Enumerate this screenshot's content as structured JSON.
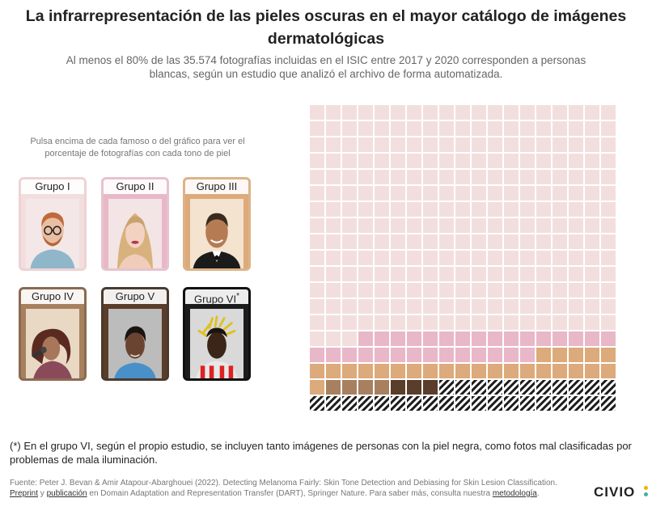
{
  "title": "La infrarrepresentación de las pieles oscuras en el mayor catálogo de imágenes dermatológicas",
  "subtitle": "Al menos el 80% de las 35.574 fotografías incluidas en el ISIC entre 2017 y 2020 corresponden a personas blancas, según un estudio que analizó el archivo de forma automatizada.",
  "instructions": "Pulsa encima de cada famoso o del gráfico para ver el porcentaje de fotografías con cada tono de piel",
  "groups": [
    {
      "label": "Grupo I",
      "color": "#f3dede",
      "border": "#edd3d5"
    },
    {
      "label": "Grupo II",
      "color": "#e8b8c8",
      "border": "#e6c3cd"
    },
    {
      "label": "Grupo III",
      "color": "#dcaa7b",
      "border": "#dcb388"
    },
    {
      "label": "Grupo IV",
      "color": "#a7805f",
      "border": "#8a6a52"
    },
    {
      "label": "Grupo V",
      "color": "#5a3d2a",
      "border": "#4a3a30"
    },
    {
      "label": "Grupo VI",
      "color": "#1c1c1c",
      "border": "#111111",
      "footnote_mark": "*"
    }
  ],
  "chart_data": {
    "type": "waffle",
    "rows": 19,
    "columns": 19,
    "unit": "fotografías",
    "total": 35574,
    "categories": [
      "Grupo I",
      "Grupo II",
      "Grupo III",
      "Grupo IV",
      "Grupo V",
      "Grupo VI"
    ],
    "cell_counts": [
      269,
      30,
      25,
      4,
      3,
      30
    ],
    "hatched_category": "Grupo VI"
  },
  "footnote": "(*) En el grupo VI, según el propio estudio, se incluyen tanto imágenes de personas con la piel negra, como fotos mal clasificadas por problemas de mala iluminación.",
  "source": {
    "prefix": "Fuente: Peter J. Bevan & Amir Atapour-Abarghouei (2022). Detecting Melanoma Fairly: Skin Tone Detection and Debiasing for Skin Lesion Classification. ",
    "link_preprint": "Preprint",
    "y": " y ",
    "link_publicacion": "publicación",
    "middle": " en Domain Adaptation and Representation Transfer (DART), Springer Nature. Para saber más, consulta nuestra ",
    "link_metodologia": "metodología",
    "suffix": "."
  },
  "logo": {
    "text": "CIVIO",
    "dot_colors": [
      "#f2b400",
      "#3ab5a5"
    ]
  }
}
